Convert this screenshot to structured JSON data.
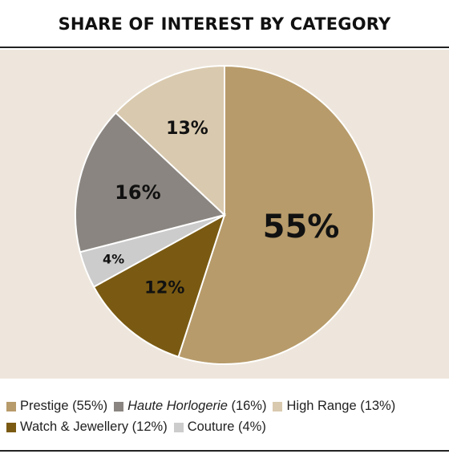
{
  "title": "SHARE OF INTEREST BY CATEGORY",
  "chart_data": {
    "type": "pie",
    "title": "SHARE OF INTEREST BY CATEGORY",
    "slices": [
      {
        "label": "Prestige",
        "value": 55,
        "display": "55%",
        "legend": "Prestige (55%)",
        "color": "#b79b6a"
      },
      {
        "label": "Watch & Jewellery",
        "value": 12,
        "display": "12%",
        "legend": "Watch & Jewellery (12%)",
        "color": "#7a5a12"
      },
      {
        "label": "Couture",
        "value": 4,
        "display": "4%",
        "legend": "Couture (4%)",
        "color": "#cccccc"
      },
      {
        "label": "Haute Horlogerie",
        "value": 16,
        "display": "16%",
        "legend_name": "Haute Horlogerie",
        "legend_pct": " (16%)",
        "color": "#8a8580"
      },
      {
        "label": "High Range",
        "value": 13,
        "display": "13%",
        "legend": "High Range (13%)",
        "color": "#d9c9ae"
      }
    ],
    "legend_placement": "bottom",
    "background": "#eee6dc"
  }
}
